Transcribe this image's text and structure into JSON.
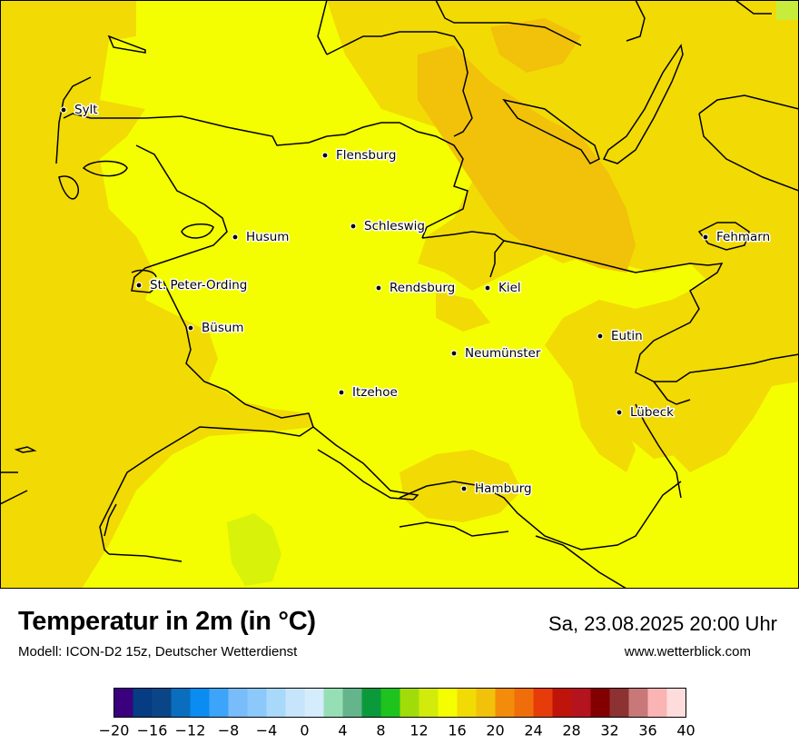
{
  "map": {
    "cities": [
      {
        "name": "Sylt"
      },
      {
        "name": "Flensburg"
      },
      {
        "name": "Schleswig"
      },
      {
        "name": "Husum"
      },
      {
        "name": "St. Peter-Ording"
      },
      {
        "name": "Rendsburg"
      },
      {
        "name": "Kiel"
      },
      {
        "name": "Fehmarn"
      },
      {
        "name": "Büsum"
      },
      {
        "name": "Eutin"
      },
      {
        "name": "Neumünster"
      },
      {
        "name": "Itzehoe"
      },
      {
        "name": "Lübeck"
      },
      {
        "name": "Hamburg"
      }
    ],
    "colors": {
      "land_base": "#f4fe00",
      "warm_zone": "#f2da05",
      "warmer_zone": "#f2c10a",
      "cool_spot": "#d9f20a",
      "border": "#000000"
    }
  },
  "footer": {
    "title": "Temperatur in 2m (in °C)",
    "model": "Modell: ICON-D2 15z, Deutscher Wetterdienst",
    "datetime": "Sa, 23.08.2025 20:00 Uhr",
    "website": "www.wetterblick.com"
  },
  "legend": {
    "min": -20,
    "max": 40,
    "step": 2,
    "colors": [
      "#3a007d",
      "#053c82",
      "#0a4687",
      "#0a6ebe",
      "#0a8cf0",
      "#3ca5fa",
      "#78bcfa",
      "#8cc8fa",
      "#a8d8fa",
      "#c6e4fc",
      "#d4ecfc",
      "#96deb4",
      "#64b48c",
      "#0a9a3c",
      "#1ec31e",
      "#a0dc0a",
      "#d2eb0a",
      "#f4fe00",
      "#f2da05",
      "#f2c10a",
      "#f28c0a",
      "#f06e0a",
      "#e63c0a",
      "#be140a",
      "#b4141e",
      "#820000",
      "#8c3232",
      "#c87878",
      "#fab4b4",
      "#ffdcdc"
    ],
    "tick_labels": [
      "−20",
      "−16",
      "−12",
      "−8",
      "−4",
      "0",
      "4",
      "8",
      "12",
      "16",
      "20",
      "24",
      "28",
      "32",
      "36",
      "40"
    ]
  }
}
